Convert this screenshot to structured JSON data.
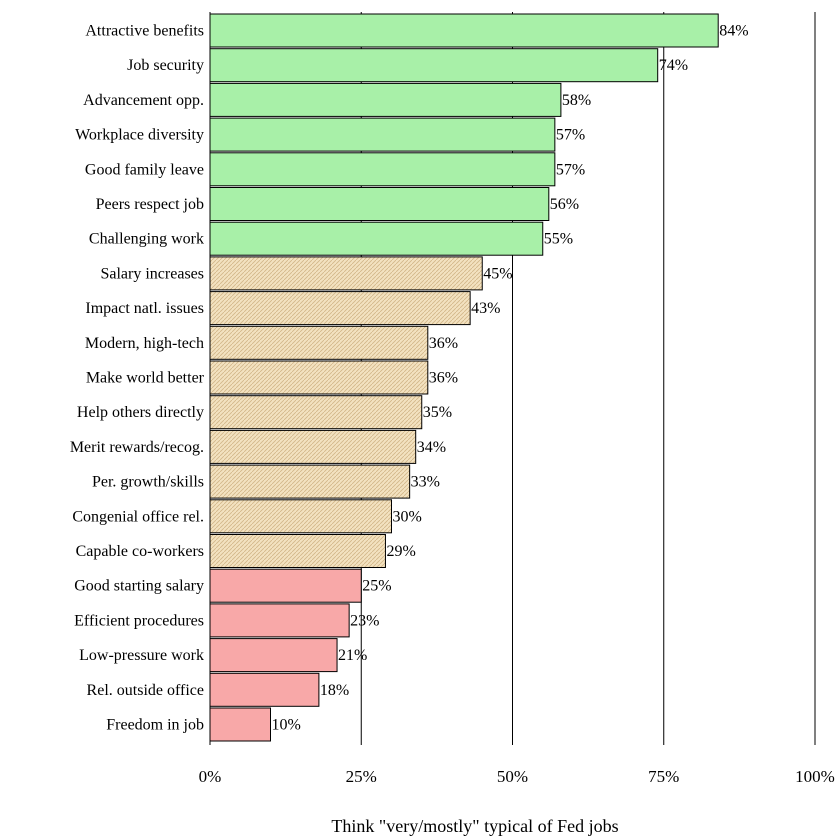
{
  "chart_data": {
    "type": "bar",
    "orientation": "horizontal",
    "categories": [
      "Attractive benefits",
      "Job security",
      "Advancement opp.",
      "Workplace diversity",
      "Good family leave",
      "Peers respect job",
      "Challenging work",
      "Salary increases",
      "Impact natl. issues",
      "Modern, high-tech",
      "Make world better",
      "Help others directly",
      "Merit rewards/recog.",
      "Per. growth/skills",
      "Congenial office rel.",
      "Capable co-workers",
      "Good starting salary",
      "Efficient procedures",
      "Low-pressure work",
      "Rel. outside office",
      "Freedom in job"
    ],
    "values": [
      84,
      74,
      58,
      57,
      57,
      56,
      55,
      45,
      43,
      36,
      36,
      35,
      34,
      33,
      30,
      29,
      25,
      23,
      21,
      18,
      10
    ],
    "value_labels": [
      "84%",
      "74%",
      "58%",
      "57%",
      "57%",
      "56%",
      "55%",
      "45%",
      "43%",
      "36%",
      "36%",
      "35%",
      "34%",
      "33%",
      "30%",
      "29%",
      "25%",
      "23%",
      "21%",
      "18%",
      "10%"
    ],
    "groups": [
      "high",
      "high",
      "high",
      "high",
      "high",
      "high",
      "high",
      "mid",
      "mid",
      "mid",
      "mid",
      "mid",
      "mid",
      "mid",
      "mid",
      "mid",
      "low",
      "low",
      "low",
      "low",
      "low"
    ],
    "group_colors": {
      "high": "#a8f0a8",
      "mid": "#f0dcb4",
      "low": "#f8a8a8"
    },
    "xlim": [
      0,
      100
    ],
    "xticks": [
      "0%",
      "25%",
      "50%",
      "75%",
      "100%"
    ],
    "xlabel": "Think \"very/mostly\" typical of Fed jobs",
    "title": "",
    "grid": "vertical gridlines at 25%, 50%, 75%, 100%"
  }
}
